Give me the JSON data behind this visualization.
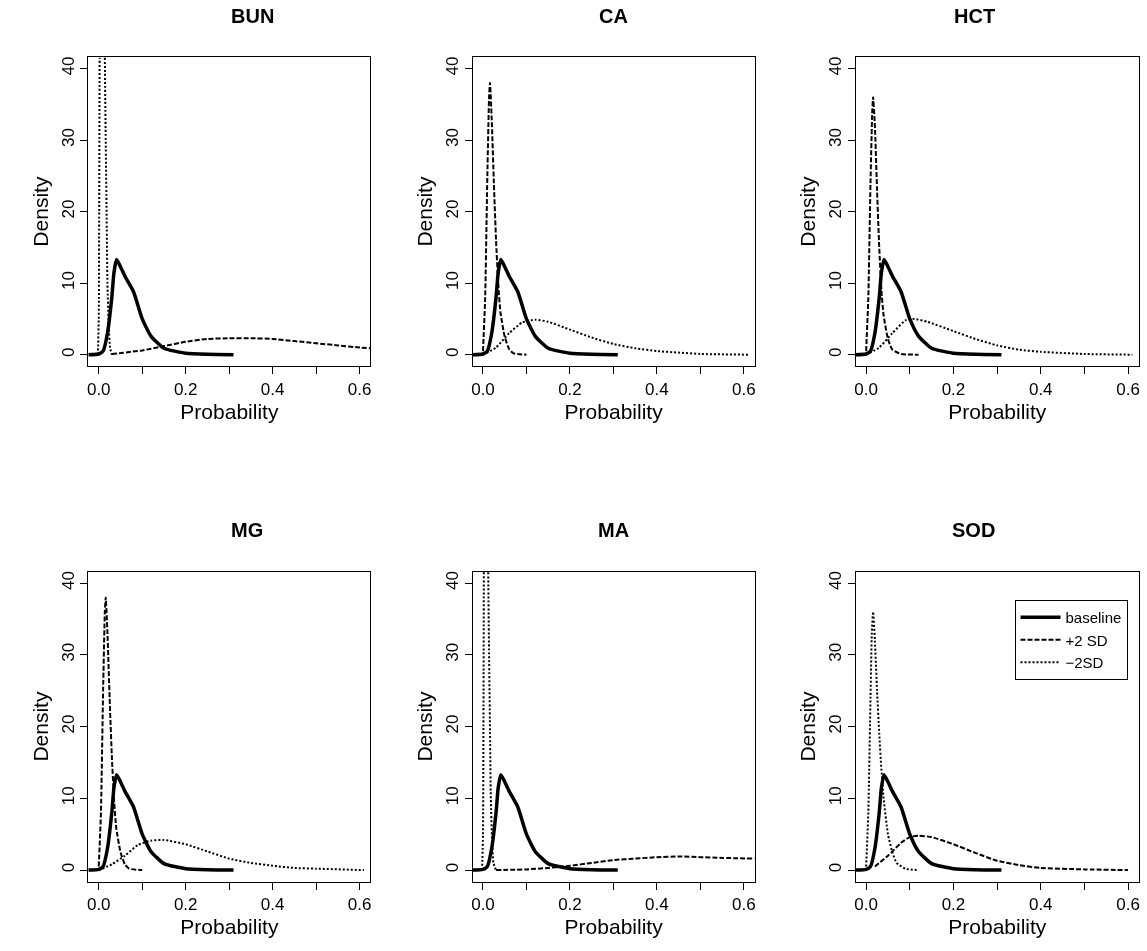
{
  "chart_data": [
    {
      "type": "line",
      "title": "BUN",
      "xlabel": "Probability",
      "ylabel": "Density",
      "xlim": [
        -0.024,
        0.625
      ],
      "ylim": [
        -1.6,
        41.6
      ],
      "xticks": [
        {
          "value": 0,
          "label": "0.0"
        },
        {
          "value": 0.1,
          "label": null
        },
        {
          "value": 0.2,
          "label": "0.2"
        },
        {
          "value": 0.3,
          "label": null
        },
        {
          "value": 0.4,
          "label": "0.4"
        },
        {
          "value": 0.5,
          "label": null
        },
        {
          "value": 0.6,
          "label": "0.6"
        }
      ],
      "yticks": [
        0,
        10,
        20,
        30,
        40
      ],
      "series": [
        {
          "color": "#000000",
          "line_style": "solid",
          "x": [
            -0.024,
            0,
            0.01,
            0.02,
            0.03,
            0.035,
            0.041,
            0.05,
            0.06,
            0.08,
            0.1,
            0.12,
            0.15,
            0.2,
            0.25,
            0.31
          ],
          "values": [
            0,
            0.1,
            0.5,
            3,
            8,
            11.5,
            13.3,
            12.3,
            11,
            8.8,
            5,
            2.6,
            0.9,
            0.2,
            0.05,
            0
          ]
        },
        {
          "color": "#000000",
          "line_style": "dashed",
          "x": [
            0.03,
            0.1,
            0.15,
            0.2,
            0.25,
            0.3,
            0.35,
            0.4,
            0.45,
            0.5,
            0.55,
            0.6,
            0.625
          ],
          "values": [
            0.1,
            0.6,
            1.2,
            1.8,
            2.2,
            2.3,
            2.3,
            2.2,
            1.9,
            1.6,
            1.3,
            1.0,
            0.9
          ]
        },
        {
          "color": "#000000",
          "line_style": "dotted",
          "x": [
            -0.002,
            0,
            0.001,
            0.002,
            0.008,
            0.014,
            0.016,
            0.018,
            0.02,
            0.023,
            0.026,
            0.03
          ],
          "values": [
            0,
            5,
            20,
            41.5,
            null,
            41.5,
            30,
            20,
            10,
            4,
            1,
            0
          ]
        }
      ]
    },
    {
      "type": "line",
      "title": "CA",
      "xlabel": "Probability",
      "ylabel": "Density",
      "xlim": [
        -0.024,
        0.625
      ],
      "ylim": [
        -1.6,
        41.6
      ],
      "xticks": [
        {
          "value": 0,
          "label": "0.0"
        },
        {
          "value": 0.1,
          "label": null
        },
        {
          "value": 0.2,
          "label": "0.2"
        },
        {
          "value": 0.3,
          "label": null
        },
        {
          "value": 0.4,
          "label": "0.4"
        },
        {
          "value": 0.5,
          "label": null
        },
        {
          "value": 0.6,
          "label": "0.6"
        }
      ],
      "yticks": [
        0,
        10,
        20,
        30,
        40
      ],
      "series": [
        {
          "color": "#000000",
          "line_style": "solid",
          "x": [
            -0.024,
            0,
            0.01,
            0.02,
            0.03,
            0.035,
            0.041,
            0.05,
            0.06,
            0.08,
            0.1,
            0.12,
            0.15,
            0.2,
            0.25,
            0.31
          ],
          "values": [
            0,
            0.1,
            0.5,
            3,
            8,
            11.5,
            13.3,
            12.3,
            11,
            8.8,
            5,
            2.6,
            0.9,
            0.2,
            0.05,
            0
          ]
        },
        {
          "color": "#000000",
          "line_style": "dashed",
          "x": [
            0,
            0.005,
            0.01,
            0.014,
            0.016,
            0.02,
            0.025,
            0.03,
            0.035,
            0.04,
            0.05,
            0.06,
            0.07,
            0.1
          ],
          "values": [
            0.5,
            8,
            25,
            36,
            38,
            33,
            24,
            16,
            10,
            6,
            2.5,
            0.8,
            0.2,
            0
          ]
        },
        {
          "color": "#000000",
          "line_style": "dotted",
          "x": [
            0,
            0.03,
            0.06,
            0.09,
            0.12,
            0.15,
            0.2,
            0.25,
            0.3,
            0.35,
            0.4,
            0.45,
            0.5,
            0.61
          ],
          "values": [
            0,
            1,
            3,
            4.5,
            4.9,
            4.6,
            3.5,
            2.4,
            1.5,
            0.9,
            0.5,
            0.3,
            0.1,
            0
          ]
        }
      ]
    },
    {
      "type": "line",
      "title": "HCT",
      "xlabel": "Probability",
      "ylabel": "Density",
      "xlim": [
        -0.024,
        0.625
      ],
      "ylim": [
        -1.6,
        41.6
      ],
      "xticks": [
        {
          "value": 0,
          "label": "0.0"
        },
        {
          "value": 0.1,
          "label": null
        },
        {
          "value": 0.2,
          "label": "0.2"
        },
        {
          "value": 0.3,
          "label": null
        },
        {
          "value": 0.4,
          "label": "0.4"
        },
        {
          "value": 0.5,
          "label": null
        },
        {
          "value": 0.6,
          "label": "0.6"
        }
      ],
      "yticks": [
        0,
        10,
        20,
        30,
        40
      ],
      "series": [
        {
          "color": "#000000",
          "line_style": "solid",
          "x": [
            -0.024,
            0,
            0.01,
            0.02,
            0.03,
            0.035,
            0.041,
            0.05,
            0.06,
            0.08,
            0.1,
            0.12,
            0.15,
            0.2,
            0.25,
            0.31
          ],
          "values": [
            0,
            0.1,
            0.5,
            3,
            8,
            11.5,
            13.3,
            12.3,
            11,
            8.8,
            5,
            2.6,
            0.9,
            0.2,
            0.05,
            0
          ]
        },
        {
          "color": "#000000",
          "line_style": "dashed",
          "x": [
            0,
            0.005,
            0.01,
            0.014,
            0.016,
            0.02,
            0.025,
            0.03,
            0.035,
            0.04,
            0.05,
            0.06,
            0.08,
            0.12
          ],
          "values": [
            0.5,
            8,
            24,
            34,
            36,
            32,
            23,
            15,
            9,
            5.5,
            2.2,
            0.7,
            0.1,
            0
          ]
        },
        {
          "color": "#000000",
          "line_style": "dotted",
          "x": [
            0,
            0.03,
            0.06,
            0.09,
            0.11,
            0.14,
            0.2,
            0.25,
            0.3,
            0.35,
            0.4,
            0.5,
            0.61
          ],
          "values": [
            0,
            1,
            3,
            4.8,
            5,
            4.6,
            3.3,
            2.2,
            1.3,
            0.7,
            0.4,
            0.1,
            0
          ]
        }
      ]
    },
    {
      "type": "line",
      "title": "MG",
      "xlabel": "Probability",
      "ylabel": "Density",
      "xlim": [
        -0.024,
        0.625
      ],
      "ylim": [
        -1.6,
        41.6
      ],
      "xticks": [
        {
          "value": 0,
          "label": "0.0"
        },
        {
          "value": 0.1,
          "label": null
        },
        {
          "value": 0.2,
          "label": "0.2"
        },
        {
          "value": 0.3,
          "label": null
        },
        {
          "value": 0.4,
          "label": "0.4"
        },
        {
          "value": 0.5,
          "label": null
        },
        {
          "value": 0.6,
          "label": "0.6"
        }
      ],
      "yticks": [
        0,
        10,
        20,
        30,
        40
      ],
      "series": [
        {
          "color": "#000000",
          "line_style": "solid",
          "x": [
            -0.024,
            0,
            0.01,
            0.02,
            0.03,
            0.035,
            0.041,
            0.05,
            0.06,
            0.08,
            0.1,
            0.12,
            0.15,
            0.2,
            0.25,
            0.31
          ],
          "values": [
            0,
            0.1,
            0.5,
            3,
            8,
            11.5,
            13.3,
            12.3,
            11,
            8.8,
            5,
            2.6,
            0.9,
            0.2,
            0.05,
            0
          ]
        },
        {
          "color": "#000000",
          "line_style": "dashed",
          "x": [
            0,
            0.005,
            0.01,
            0.014,
            0.016,
            0.02,
            0.025,
            0.03,
            0.035,
            0.04,
            0.05,
            0.06,
            0.07,
            0.1
          ],
          "values": [
            0.5,
            8,
            25,
            36,
            38,
            33,
            24,
            16,
            10,
            6,
            2.5,
            0.8,
            0.2,
            0
          ]
        },
        {
          "color": "#000000",
          "line_style": "dotted",
          "x": [
            0,
            0.03,
            0.06,
            0.09,
            0.12,
            0.15,
            0.2,
            0.25,
            0.3,
            0.35,
            0.4,
            0.45,
            0.5,
            0.61
          ],
          "values": [
            0,
            0.8,
            2,
            3.5,
            4.1,
            4.2,
            3.6,
            2.6,
            1.6,
            1,
            0.6,
            0.3,
            0.2,
            0
          ]
        }
      ]
    },
    {
      "type": "line",
      "title": "MA",
      "xlabel": "Probability",
      "ylabel": "Density",
      "xlim": [
        -0.024,
        0.625
      ],
      "ylim": [
        -1.6,
        41.6
      ],
      "xticks": [
        {
          "value": 0,
          "label": "0.0"
        },
        {
          "value": 0.1,
          "label": null
        },
        {
          "value": 0.2,
          "label": "0.2"
        },
        {
          "value": 0.3,
          "label": null
        },
        {
          "value": 0.4,
          "label": "0.4"
        },
        {
          "value": 0.5,
          "label": null
        },
        {
          "value": 0.6,
          "label": "0.6"
        }
      ],
      "yticks": [
        0,
        10,
        20,
        30,
        40
      ],
      "series": [
        {
          "color": "#000000",
          "line_style": "solid",
          "x": [
            -0.024,
            0,
            0.01,
            0.02,
            0.03,
            0.035,
            0.041,
            0.05,
            0.06,
            0.08,
            0.1,
            0.12,
            0.15,
            0.2,
            0.25,
            0.31
          ],
          "values": [
            0,
            0.1,
            0.5,
            3,
            8,
            11.5,
            13.3,
            12.3,
            11,
            8.8,
            5,
            2.6,
            0.9,
            0.2,
            0.05,
            0
          ]
        },
        {
          "color": "#000000",
          "line_style": "dashed",
          "x": [
            0.03,
            0.1,
            0.15,
            0.2,
            0.25,
            0.3,
            0.35,
            0.4,
            0.45,
            0.5,
            0.55,
            0.625
          ],
          "values": [
            0,
            0.1,
            0.3,
            0.6,
            1.0,
            1.4,
            1.6,
            1.8,
            1.9,
            1.8,
            1.7,
            1.6
          ]
        },
        {
          "color": "#000000",
          "line_style": "dotted",
          "x": [
            -0.002,
            0,
            0.001,
            0.002,
            0.008,
            0.012,
            0.014,
            0.016,
            0.018,
            0.021,
            0.024,
            0.03
          ],
          "values": [
            0,
            5,
            20,
            41.5,
            null,
            41.5,
            30,
            20,
            10,
            4,
            1,
            0
          ]
        }
      ]
    },
    {
      "type": "line",
      "title": "SOD",
      "xlabel": "Probability",
      "ylabel": "Density",
      "xlim": [
        -0.024,
        0.625
      ],
      "ylim": [
        -1.6,
        41.6
      ],
      "legend": "top right",
      "xticks": [
        {
          "value": 0,
          "label": "0.0"
        },
        {
          "value": 0.1,
          "label": null
        },
        {
          "value": 0.2,
          "label": "0.2"
        },
        {
          "value": 0.3,
          "label": null
        },
        {
          "value": 0.4,
          "label": "0.4"
        },
        {
          "value": 0.5,
          "label": null
        },
        {
          "value": 0.6,
          "label": "0.6"
        }
      ],
      "yticks": [
        0,
        10,
        20,
        30,
        40
      ],
      "series": [
        {
          "name": "baseline",
          "color": "#000000",
          "line_style": "solid",
          "x": [
            -0.024,
            0,
            0.01,
            0.02,
            0.03,
            0.035,
            0.041,
            0.05,
            0.06,
            0.08,
            0.1,
            0.12,
            0.15,
            0.2,
            0.25,
            0.31
          ],
          "values": [
            0,
            0.1,
            0.5,
            3,
            8,
            11.5,
            13.3,
            12.3,
            11,
            8.8,
            5,
            2.6,
            0.9,
            0.2,
            0.05,
            0
          ]
        },
        {
          "name": "+2 SD",
          "color": "#000000",
          "line_style": "dashed",
          "x": [
            0.02,
            0.05,
            0.08,
            0.1,
            0.12,
            0.15,
            0.2,
            0.25,
            0.3,
            0.35,
            0.4,
            0.5,
            0.6
          ],
          "values": [
            0.5,
            2,
            3.8,
            4.6,
            4.8,
            4.6,
            3.6,
            2.4,
            1.3,
            0.7,
            0.3,
            0.1,
            0
          ]
        },
        {
          "name": "−2SD",
          "color": "#000000",
          "line_style": "dotted",
          "x": [
            0,
            0.005,
            0.01,
            0.013,
            0.016,
            0.02,
            0.025,
            0.03,
            0.035,
            0.04,
            0.05,
            0.06,
            0.07,
            0.09,
            0.12
          ],
          "values": [
            0.5,
            8,
            24,
            33,
            36,
            32,
            25,
            19,
            14,
            10,
            5,
            2.5,
            1,
            0.2,
            0
          ]
        }
      ]
    }
  ]
}
